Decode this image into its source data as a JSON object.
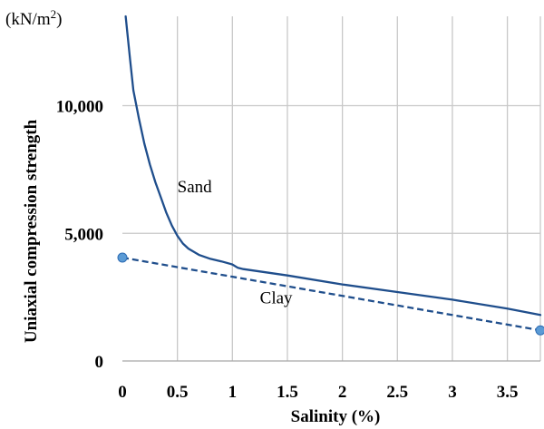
{
  "chart_data": {
    "type": "line",
    "ylabel": "Uniaxial compression strength",
    "xlabel": "Salinity (%)",
    "y_unit": {
      "base": "(kN/m",
      "sup": "2",
      "close": ")"
    },
    "xlim": [
      0,
      3.8
    ],
    "ylim": [
      0,
      13500
    ],
    "x_ticks": [
      {
        "value": 0,
        "label": "0"
      },
      {
        "value": 0.5,
        "label": "0.5"
      },
      {
        "value": 1,
        "label": "1"
      },
      {
        "value": 1.5,
        "label": "1.5"
      },
      {
        "value": 2,
        "label": "2"
      },
      {
        "value": 2.5,
        "label": "2.5"
      },
      {
        "value": 3,
        "label": "3"
      },
      {
        "value": 3.5,
        "label": "3.5"
      }
    ],
    "x_grid": [
      0.5,
      1,
      1.5,
      2,
      2.5,
      3,
      3.5
    ],
    "y_ticks": [
      {
        "value": 0,
        "label": "0"
      },
      {
        "value": 5000,
        "label": "5,000"
      },
      {
        "value": 10000,
        "label": "10,000"
      }
    ],
    "y_grid": [
      5000,
      10000
    ],
    "grid": true,
    "series": [
      {
        "name": "Sand",
        "style": "solid",
        "color": "#1f4e8c",
        "points": [
          [
            0.03,
            13500
          ],
          [
            0.07,
            11800
          ],
          [
            0.1,
            10600
          ],
          [
            0.15,
            9500
          ],
          [
            0.2,
            8500
          ],
          [
            0.25,
            7700
          ],
          [
            0.3,
            7000
          ],
          [
            0.35,
            6400
          ],
          [
            0.4,
            5800
          ],
          [
            0.45,
            5300
          ],
          [
            0.5,
            4900
          ],
          [
            0.55,
            4600
          ],
          [
            0.6,
            4400
          ],
          [
            0.7,
            4150
          ],
          [
            0.8,
            4000
          ],
          [
            0.9,
            3900
          ],
          [
            1.0,
            3780
          ],
          [
            1.05,
            3650
          ],
          [
            1.1,
            3600
          ],
          [
            1.5,
            3350
          ],
          [
            2.0,
            3000
          ],
          [
            2.5,
            2700
          ],
          [
            3.0,
            2400
          ],
          [
            3.5,
            2050
          ],
          [
            3.8,
            1800
          ]
        ]
      },
      {
        "name": "Clay",
        "style": "dashed",
        "color": "#1f4e8c",
        "marker_color": "#5b9bd5",
        "markers": true,
        "points": [
          [
            0,
            4050
          ],
          [
            3.8,
            1200
          ]
        ]
      }
    ],
    "series_labels": [
      {
        "series": "Sand",
        "text": "Sand",
        "at": [
          0.5,
          6600
        ]
      },
      {
        "series": "Clay",
        "text": "Clay",
        "at": [
          1.25,
          2250
        ]
      }
    ]
  }
}
